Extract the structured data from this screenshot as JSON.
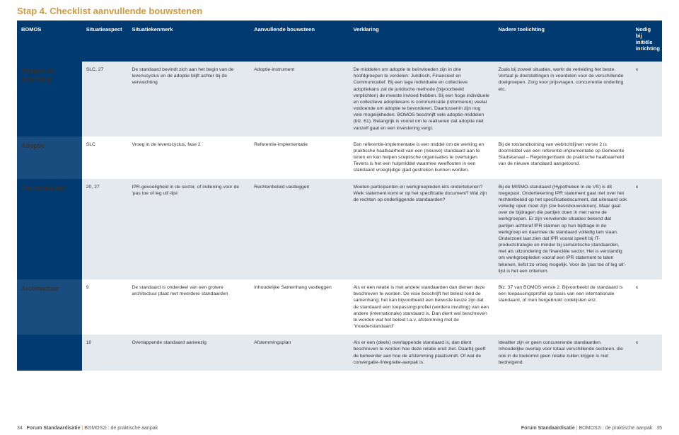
{
  "title": "Stap 4. Checklist aanvullende bouwstenen",
  "columns": [
    "BOMOS",
    "Situatieaspect",
    "Situatiekenmerk",
    "Aanvullende bouwsteen",
    "Verklaring",
    "Nadere toelichting",
    "Nodig bij initiële inrichting"
  ],
  "rows": [
    {
      "bomos": "Adoptie en erkenning",
      "situatie": "SLC, 27",
      "kenmerk": "De standaard bevindt zich aan het begin van de levenscyclus en de adoptie blijft achter bij de verwachting",
      "bouwsteen": "Adoptie-instrument",
      "verklaring": "De middelen om adoptie te beïnvloeden zijn in drie hoofdgroepen te verdelen: Juridisch, Financieel en Communicatief. Bij een lage individuele en collectieve adoptiekans zal de juridische methode (bijvoorbeeld verplichten) de meeste invloed hebben. Bij een hoge individuele en collectieve adoptiekans is communicatie (informeren) veelal voldoende om adoptie te bevorderen. Daartussenin zijn nog vele mogelijkheden. BOMOS beschrijft vele adoptie-middelen (blz. 61). Belangrijk is vooral om te realiseren dat adoptie niet vanzelf gaat en een investering vergt.",
      "nadere": "Zoals bij zoveel situaties, werkt de verleiding het beste. Vertaal je doelstellingen in voordelen voor de verschillende doelgroepen. Zorg voor prijsvragen, concurrentie onderling etc.",
      "nodig": "x"
    },
    {
      "bomos": "Adoptie",
      "situatie": "SLC",
      "kenmerk": "Vroeg in de levenscyclus, fase 2",
      "bouwsteen": "Referentie-implementatie",
      "verklaring": "Een referentie-implementatie is een middel om de werking en praktische haalbaarheid van een (nieuwe) standaard aan te tonen en kan helpen sceptische organisaties te overtuigen. Tevens is het een hulpmiddel waarmee weeffouten in een standaard vroegtijdige glad gestreken kunnen worden.",
      "nadere": "Bij de totstandkoming van webrichtlijnen versie 2 is doormiddel van een referentie-implementatie op Gemeente Stadskanaal – Regelingenbank de praktische haalbaarheid van de nieuwe standaard aangetoond.",
      "nodig": ""
    },
    {
      "bomos": "Rechtenbeleid",
      "situatie": "20, 27",
      "kenmerk": "IPR-gevoeligheid in de sector, of indiening voor de 'pas toe of leg uit'-lijst",
      "bouwsteen": "Rechtenbeleid vastleggen",
      "verklaring": "Moeten participanten en werkgroepleden iets ondertekenen? Welk statement komt er op het specificatie document? Wat zijn de rechten op onderliggende standaarden?",
      "nadere": "Bij de MISMO-standaard (Hypotheken in de VS) is dit toegepast. Ondertekening IPR statement gaat niet over het rechtenbeleid op het specificatiedocument, dat uiteraard ook volledig open moet zijn (zie basisbouwstenen). Maar gaat over de bijdragen die partijen doen in met name de werkgroepen. Er zijn vervelende situaties bekend dat partijen achteraf IPR claimen op hun bijdrage in de werkgroep en daarmee de standaard volledig lam slaan. Onderzoek laat zien dat IPR vooral speelt bij IT-productstrategie en minder bij semantische standaarden, met als uitzondering de financiële sector. Het is verstandig om werkgroepleden vooraf een IPR statement te laten tekenen, liefst zo vroeg mogelijk. Voor de 'pas toe of leg uit'-lijst is het een criterium.",
      "nodig": "x"
    },
    {
      "bomos": "Architectuur",
      "situatie": "9",
      "kenmerk": "De standaard is onderdeel van een grotere architectuur plaat met meerdere standaarden",
      "bouwsteen": "Inhoudelijke Samenhang vastleggen",
      "verklaring": "Als er een relatie is met andere standaarden dan dienen deze beschreven te worden. De visie beschrijft het beleid rond de samenhang; het kan bijvoorbeeld een bewuste keuze zijn dat de standaard een toepassingsprofiel (verdere invulling) van een andere (internationale) standaard is. Dan dient wel beschreven te worden wat het beleid t.a.v. afstemming met de \"moederstandaard\"",
      "nadere": "Blz. 37 van BOMOS versie 2. Bijvoorbeeld de standaard is een toepassingsprofiel op basis van een internationale standaard, of men hergebruikt codelijsten enz.",
      "nodig": "x"
    },
    {
      "bomos": "",
      "situatie": "10",
      "kenmerk": "Overlappende standaard aanwezig",
      "bouwsteen": "Afstemmingsplan",
      "verklaring": "Als er een (deels) overlappende standaard is, dan dient beschreven te worden hoe deze relatie eruit ziet. Daarbij geeft de beheerder aan hoe de afstemming plaatsvindt. Of wat de convergatie-/integratie-aanpak is.",
      "nadere": "Idealiter zijn er geen concurerende standaarden. Inhoudelijke overlap voor totaal verschillende sectoren, die ook in de toekomst geen relatie zullen krijgen is niet bedreigend.",
      "nodig": "x"
    }
  ],
  "footer": {
    "left_page": "34",
    "left_text": "Forum Standaardisatie | BOMOS2i : de praktische aanpak",
    "right_text": "Forum Standaardisatie | BOMOS2i : de praktische aanpak",
    "right_page": "35"
  },
  "colors": {
    "header_bg": "#003a70",
    "odd_row": "#e4e9ee",
    "even_row": "#ffffff",
    "title_color": "#d19b3f"
  }
}
